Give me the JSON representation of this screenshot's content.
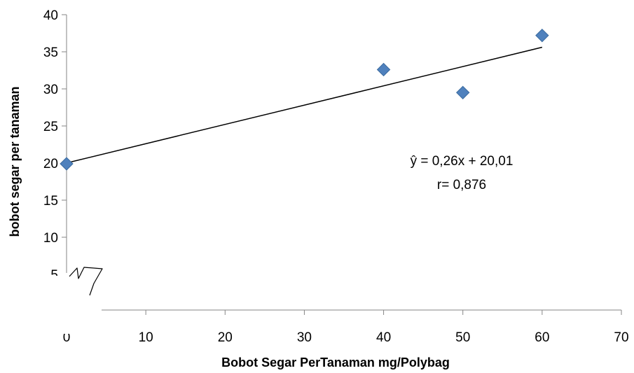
{
  "chart_data": {
    "type": "scatter",
    "title": "",
    "xlabel": "Bobot Segar PerTanaman mg/Polybag",
    "ylabel": "bobot segar per tanaman",
    "xlim": [
      0,
      70
    ],
    "ylim": [
      5,
      40
    ],
    "x_ticks": [
      "0",
      "10",
      "20",
      "30",
      "40",
      "50",
      "60",
      "70"
    ],
    "y_ticks": [
      "5",
      "10",
      "15",
      "20",
      "25",
      "30",
      "35",
      "40"
    ],
    "series": [
      {
        "points": [
          {
            "x": 0,
            "y": 19.9
          },
          {
            "x": 40,
            "y": 32.6
          },
          {
            "x": 50,
            "y": 29.5
          },
          {
            "x": 60,
            "y": 37.2
          }
        ],
        "marker": "diamond",
        "color": "#4F81BD"
      }
    ],
    "trendline": {
      "slope": 0.26,
      "intercept": 20.01,
      "x_range": [
        0,
        60
      ],
      "color": "#000000"
    },
    "annotations": [
      "ŷ = 0,26x + 20,01",
      "r= 0,876"
    ],
    "axis_break": true,
    "grid": false
  }
}
